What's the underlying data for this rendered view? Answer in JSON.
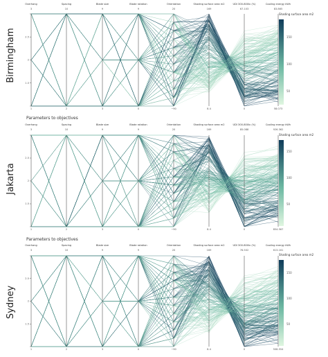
{
  "chart_data": [
    {
      "type": "parallel_coordinates",
      "city": "Birmingham",
      "section_title": "",
      "dimensions": [
        {
          "name": "Overhang",
          "range": [
            1,
            3
          ],
          "top_label": "3",
          "bottom_label": "1",
          "ticks": [
            "1",
            "1.5",
            "2",
            "2.5",
            "3"
          ]
        },
        {
          "name": "Spacing",
          "range": [
            2,
            10
          ],
          "top_label": "10",
          "bottom_label": "2",
          "ticks": []
        },
        {
          "name": "Blade size",
          "range": [
            3,
            9
          ],
          "top_label": "9",
          "bottom_label": "3",
          "ticks": []
        },
        {
          "name": "Blade rotation",
          "range": [
            0,
            9
          ],
          "top_label": "9",
          "bottom_label": "0",
          "ticks": []
        },
        {
          "name": "Orientation",
          "range": [
            -90,
            20
          ],
          "top_label": "20",
          "bottom_label": "−90",
          "ticks": []
        },
        {
          "name": "Shading surface area m2",
          "range": [
            8.4,
            169
          ],
          "top_label": "169",
          "bottom_label": "8.4",
          "ticks": []
        },
        {
          "name": "UDI 300-800lx (%)",
          "range": [
            0,
            67.103
          ],
          "top_label": "67.103",
          "bottom_label": "0",
          "ticks": []
        },
        {
          "name": "Cooling energy kWh",
          "range": [
            58.073,
            83.865
          ],
          "top_label": "83.865",
          "bottom_label": "58.073",
          "ticks": []
        }
      ],
      "colorbar": {
        "title": "Shading surface area m2",
        "ticks": [
          "50",
          "100",
          "150"
        ],
        "range": [
          8.4,
          169
        ]
      }
    },
    {
      "type": "parallel_coordinates",
      "city": "Jakarta",
      "section_title": "Parameters to objectives",
      "dimensions": [
        {
          "name": "Overhang",
          "range": [
            1,
            3
          ],
          "top_label": "3",
          "bottom_label": "1",
          "ticks": [
            "1",
            "1.5",
            "2",
            "2.5",
            "3"
          ]
        },
        {
          "name": "Spacing",
          "range": [
            2,
            10
          ],
          "top_label": "10",
          "bottom_label": "2",
          "ticks": []
        },
        {
          "name": "Blade size",
          "range": [
            3,
            9
          ],
          "top_label": "9",
          "bottom_label": "3",
          "ticks": []
        },
        {
          "name": "Blade rotation",
          "range": [
            0,
            9
          ],
          "top_label": "9",
          "bottom_label": "0",
          "ticks": []
        },
        {
          "name": "Orientation",
          "range": [
            -90,
            20
          ],
          "top_label": "20",
          "bottom_label": "−90",
          "ticks": []
        },
        {
          "name": "Shading surface area m2",
          "range": [
            8.4,
            169
          ],
          "top_label": "169",
          "bottom_label": "8.4",
          "ticks": []
        },
        {
          "name": "UDI 300-800lx (%)",
          "range": [
            0,
            85.088
          ],
          "top_label": "85.088",
          "bottom_label": "0",
          "ticks": []
        },
        {
          "name": "Cooling energy kWh",
          "range": [
            854.567,
            926.362
          ],
          "top_label": "926.362",
          "bottom_label": "854.567",
          "ticks": []
        }
      ],
      "colorbar": {
        "title": "Shading surface area m2",
        "ticks": [
          "50",
          "100",
          "150"
        ],
        "range": [
          8.4,
          169
        ]
      }
    },
    {
      "type": "parallel_coordinates",
      "city": "Sydney",
      "section_title": "Parameters to objectives",
      "dimensions": [
        {
          "name": "Overhang",
          "range": [
            1,
            3
          ],
          "top_label": "3",
          "bottom_label": "1",
          "ticks": [
            "1",
            "1.5",
            "2",
            "2.5",
            "3"
          ]
        },
        {
          "name": "Spacing",
          "range": [
            2,
            10
          ],
          "top_label": "10",
          "bottom_label": "2",
          "ticks": []
        },
        {
          "name": "Blade size",
          "range": [
            3,
            9
          ],
          "top_label": "9",
          "bottom_label": "3",
          "ticks": []
        },
        {
          "name": "Blade rotation",
          "range": [
            0,
            9
          ],
          "top_label": "9",
          "bottom_label": "0",
          "ticks": []
        },
        {
          "name": "Orientation",
          "range": [
            -90,
            20
          ],
          "top_label": "20",
          "bottom_label": "−90",
          "ticks": []
        },
        {
          "name": "Shading surface area m2",
          "range": [
            8.4,
            169
          ],
          "top_label": "169",
          "bottom_label": "8.4",
          "ticks": []
        },
        {
          "name": "UDI 300-800lx (%)",
          "range": [
            0,
            76.502
          ],
          "top_label": "76.502",
          "bottom_label": "0",
          "ticks": []
        },
        {
          "name": "Cooling energy kWh",
          "range": [
            508.554,
            613.161
          ],
          "top_label": "613.161",
          "bottom_label": "508.554",
          "ticks": []
        }
      ],
      "colorbar": {
        "title": "Shading surface area m2",
        "ticks": [
          "50",
          "100",
          "150"
        ],
        "range": [
          8.4,
          169
        ]
      }
    }
  ],
  "colors": {
    "low": "#d9f5dc",
    "mid": "#5fae9e",
    "high": "#0f3c5a",
    "axis": "#555555"
  }
}
